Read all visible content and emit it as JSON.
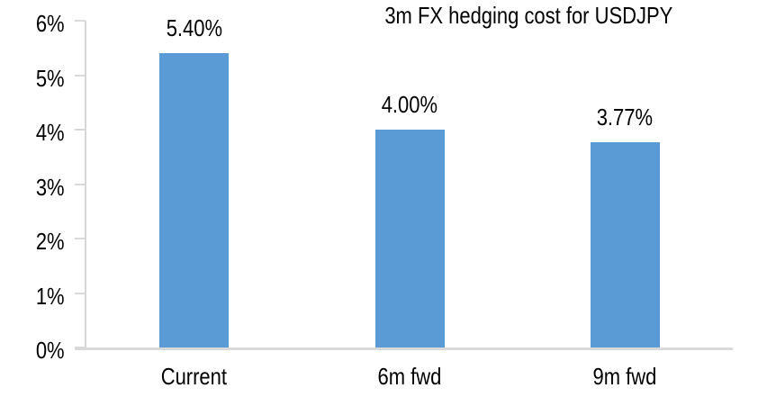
{
  "window": {
    "background": "#ffffff"
  },
  "chart_data": {
    "type": "bar",
    "title": "3m FX hedging cost for USDJPY",
    "categories": [
      "Current",
      "6m fwd",
      "9m fwd"
    ],
    "values": [
      5.4,
      4.0,
      3.77
    ],
    "value_labels": [
      "5.40%",
      "4.00%",
      "3.77%"
    ],
    "xlabel": "",
    "ylabel": "",
    "ylim": [
      0,
      6
    ],
    "ytick_values": [
      0,
      1,
      2,
      3,
      4,
      5,
      6
    ],
    "ytick_labels": [
      "0%",
      "1%",
      "2%",
      "3%",
      "4%",
      "5%",
      "6%"
    ],
    "grid": false,
    "legend_position": "none",
    "colors": {
      "bar": "#5b9bd5",
      "axis": "#d9d9d9",
      "text": "#000000"
    }
  }
}
